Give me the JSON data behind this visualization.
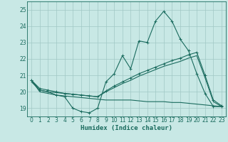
{
  "xlabel": "Humidex (Indice chaleur)",
  "x_ticks": [
    0,
    1,
    2,
    3,
    4,
    5,
    6,
    7,
    8,
    9,
    10,
    11,
    12,
    13,
    14,
    15,
    16,
    17,
    18,
    19,
    20,
    21,
    22,
    23
  ],
  "ylim": [
    18.5,
    25.5
  ],
  "yticks": [
    19,
    20,
    21,
    22,
    23,
    24,
    25
  ],
  "xlim": [
    -0.5,
    23.5
  ],
  "bg_color": "#c8e8e5",
  "grid_color": "#a0c8c5",
  "line_color": "#1a6b5e",
  "line1_y": [
    20.7,
    20.1,
    20.0,
    19.8,
    19.7,
    19.0,
    18.8,
    18.72,
    19.0,
    20.6,
    21.1,
    22.2,
    21.4,
    23.1,
    23.0,
    24.3,
    24.9,
    24.3,
    23.2,
    22.5,
    21.1,
    19.9,
    19.1,
    19.1
  ],
  "line2_y": [
    20.7,
    20.2,
    20.1,
    20.0,
    19.9,
    19.85,
    19.8,
    19.75,
    19.7,
    20.05,
    20.35,
    20.6,
    20.85,
    21.1,
    21.3,
    21.5,
    21.7,
    21.9,
    22.05,
    22.25,
    22.4,
    21.0,
    19.5,
    19.15
  ],
  "line3_y": [
    20.6,
    20.1,
    20.0,
    19.95,
    19.9,
    19.85,
    19.8,
    19.75,
    19.7,
    20.0,
    20.25,
    20.5,
    20.7,
    20.95,
    21.15,
    21.35,
    21.55,
    21.7,
    21.85,
    22.05,
    22.2,
    20.85,
    19.4,
    19.1
  ],
  "line4_y": [
    20.7,
    20.0,
    19.9,
    19.8,
    19.75,
    19.7,
    19.65,
    19.6,
    19.55,
    19.5,
    19.5,
    19.5,
    19.5,
    19.45,
    19.4,
    19.4,
    19.4,
    19.35,
    19.35,
    19.3,
    19.25,
    19.2,
    19.15,
    19.1
  ]
}
